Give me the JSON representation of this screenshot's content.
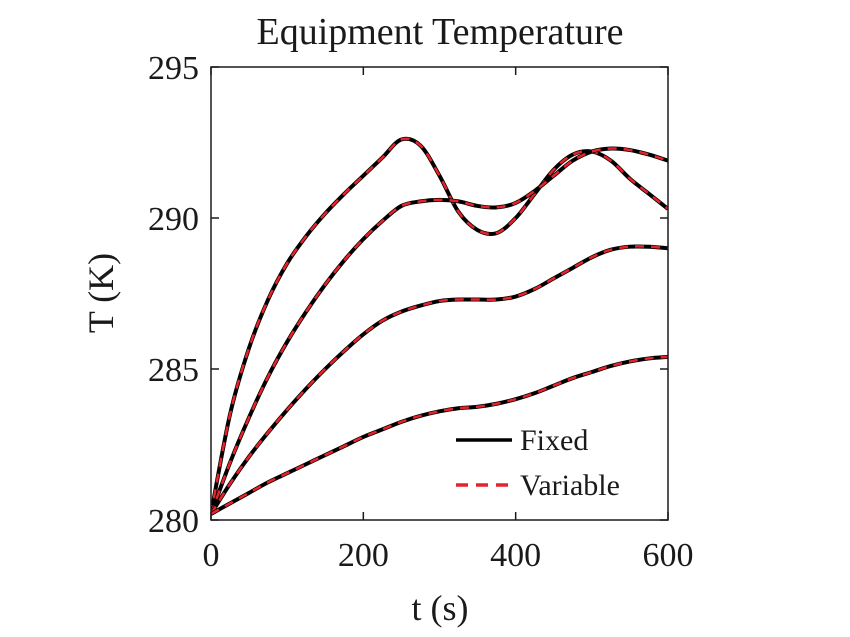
{
  "chart_data": {
    "type": "line",
    "title": "Equipment Temperature",
    "xlabel": "t (s)",
    "ylabel": "T (K)",
    "xlim": [
      0,
      600
    ],
    "ylim": [
      280,
      295
    ],
    "xticks": [
      0,
      200,
      400,
      600
    ],
    "yticks": [
      280,
      285,
      290,
      295
    ],
    "grid": false,
    "legend_position": "bottom-right",
    "legend": [
      "Fixed",
      "Variable"
    ],
    "styles": {
      "Fixed": {
        "color": "#000000",
        "dash": "solid"
      },
      "Variable": {
        "color": "#e3242b",
        "dash": "dashed"
      }
    },
    "curves": [
      {
        "x": [
          0,
          25,
          50,
          75,
          100,
          125,
          150,
          175,
          200,
          225,
          250,
          275,
          300,
          325,
          350,
          375,
          400,
          425,
          450,
          475,
          500,
          525,
          550,
          575,
          600
        ],
        "y": [
          280.2,
          283.5,
          285.7,
          287.3,
          288.5,
          289.4,
          290.15,
          290.8,
          291.4,
          292.0,
          292.6,
          292.4,
          291.4,
          290.2,
          289.6,
          289.5,
          290.0,
          290.8,
          291.6,
          292.1,
          292.2,
          291.9,
          291.3,
          290.8,
          290.3
        ]
      },
      {
        "x": [
          0,
          25,
          50,
          75,
          100,
          125,
          150,
          175,
          200,
          225,
          250,
          275,
          300,
          325,
          350,
          375,
          400,
          425,
          450,
          475,
          500,
          525,
          550,
          575,
          600
        ],
        "y": [
          280.2,
          281.9,
          283.4,
          284.75,
          285.9,
          286.9,
          287.8,
          288.6,
          289.3,
          289.9,
          290.4,
          290.55,
          290.6,
          290.55,
          290.4,
          290.35,
          290.5,
          290.9,
          291.4,
          291.9,
          292.2,
          292.3,
          292.25,
          292.1,
          291.9
        ]
      },
      {
        "x": [
          0,
          25,
          50,
          75,
          100,
          125,
          150,
          175,
          200,
          225,
          250,
          275,
          300,
          325,
          350,
          375,
          400,
          425,
          450,
          475,
          500,
          525,
          550,
          575,
          600
        ],
        "y": [
          280.2,
          281.2,
          282.1,
          282.9,
          283.65,
          284.35,
          285.0,
          285.6,
          286.15,
          286.6,
          286.9,
          287.1,
          287.25,
          287.3,
          287.3,
          287.3,
          287.4,
          287.65,
          288.0,
          288.35,
          288.7,
          288.95,
          289.05,
          289.05,
          289.0
        ]
      },
      {
        "x": [
          0,
          25,
          50,
          75,
          100,
          125,
          150,
          175,
          200,
          225,
          250,
          275,
          300,
          325,
          350,
          375,
          400,
          425,
          450,
          475,
          500,
          525,
          550,
          575,
          600
        ],
        "y": [
          280.2,
          280.55,
          280.9,
          281.25,
          281.55,
          281.85,
          282.15,
          282.45,
          282.75,
          283.0,
          283.25,
          283.45,
          283.6,
          283.7,
          283.75,
          283.85,
          284.0,
          284.2,
          284.45,
          284.7,
          284.9,
          285.1,
          285.25,
          285.35,
          285.4
        ]
      }
    ]
  }
}
